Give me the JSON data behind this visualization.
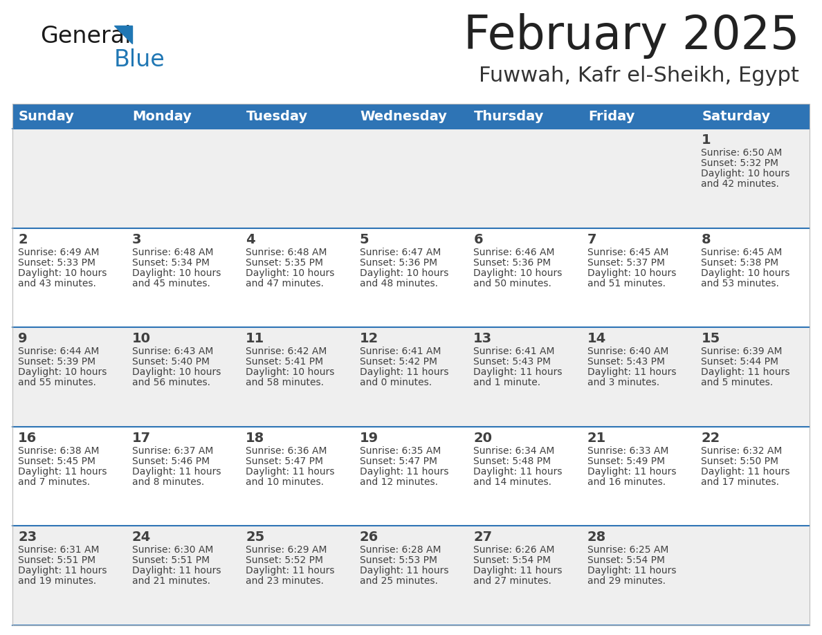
{
  "title": "February 2025",
  "subtitle": "Fuwwah, Kafr el-Sheikh, Egypt",
  "header_bg": "#2E74B5",
  "header_text": "#FFFFFF",
  "cell_bg_light": "#EFEFEF",
  "cell_bg_white": "#FFFFFF",
  "separator_color": "#2E74B5",
  "text_color": "#404040",
  "days_of_week": [
    "Sunday",
    "Monday",
    "Tuesday",
    "Wednesday",
    "Thursday",
    "Friday",
    "Saturday"
  ],
  "calendar_data": [
    [
      {
        "day": null,
        "sunrise": null,
        "sunset": null,
        "daylight": null
      },
      {
        "day": null,
        "sunrise": null,
        "sunset": null,
        "daylight": null
      },
      {
        "day": null,
        "sunrise": null,
        "sunset": null,
        "daylight": null
      },
      {
        "day": null,
        "sunrise": null,
        "sunset": null,
        "daylight": null
      },
      {
        "day": null,
        "sunrise": null,
        "sunset": null,
        "daylight": null
      },
      {
        "day": null,
        "sunrise": null,
        "sunset": null,
        "daylight": null
      },
      {
        "day": 1,
        "sunrise": "6:50 AM",
        "sunset": "5:32 PM",
        "daylight": "10 hours and 42 minutes."
      }
    ],
    [
      {
        "day": 2,
        "sunrise": "6:49 AM",
        "sunset": "5:33 PM",
        "daylight": "10 hours and 43 minutes."
      },
      {
        "day": 3,
        "sunrise": "6:48 AM",
        "sunset": "5:34 PM",
        "daylight": "10 hours and 45 minutes."
      },
      {
        "day": 4,
        "sunrise": "6:48 AM",
        "sunset": "5:35 PM",
        "daylight": "10 hours and 47 minutes."
      },
      {
        "day": 5,
        "sunrise": "6:47 AM",
        "sunset": "5:36 PM",
        "daylight": "10 hours and 48 minutes."
      },
      {
        "day": 6,
        "sunrise": "6:46 AM",
        "sunset": "5:36 PM",
        "daylight": "10 hours and 50 minutes."
      },
      {
        "day": 7,
        "sunrise": "6:45 AM",
        "sunset": "5:37 PM",
        "daylight": "10 hours and 51 minutes."
      },
      {
        "day": 8,
        "sunrise": "6:45 AM",
        "sunset": "5:38 PM",
        "daylight": "10 hours and 53 minutes."
      }
    ],
    [
      {
        "day": 9,
        "sunrise": "6:44 AM",
        "sunset": "5:39 PM",
        "daylight": "10 hours and 55 minutes."
      },
      {
        "day": 10,
        "sunrise": "6:43 AM",
        "sunset": "5:40 PM",
        "daylight": "10 hours and 56 minutes."
      },
      {
        "day": 11,
        "sunrise": "6:42 AM",
        "sunset": "5:41 PM",
        "daylight": "10 hours and 58 minutes."
      },
      {
        "day": 12,
        "sunrise": "6:41 AM",
        "sunset": "5:42 PM",
        "daylight": "11 hours and 0 minutes."
      },
      {
        "day": 13,
        "sunrise": "6:41 AM",
        "sunset": "5:43 PM",
        "daylight": "11 hours and 1 minute."
      },
      {
        "day": 14,
        "sunrise": "6:40 AM",
        "sunset": "5:43 PM",
        "daylight": "11 hours and 3 minutes."
      },
      {
        "day": 15,
        "sunrise": "6:39 AM",
        "sunset": "5:44 PM",
        "daylight": "11 hours and 5 minutes."
      }
    ],
    [
      {
        "day": 16,
        "sunrise": "6:38 AM",
        "sunset": "5:45 PM",
        "daylight": "11 hours and 7 minutes."
      },
      {
        "day": 17,
        "sunrise": "6:37 AM",
        "sunset": "5:46 PM",
        "daylight": "11 hours and 8 minutes."
      },
      {
        "day": 18,
        "sunrise": "6:36 AM",
        "sunset": "5:47 PM",
        "daylight": "11 hours and 10 minutes."
      },
      {
        "day": 19,
        "sunrise": "6:35 AM",
        "sunset": "5:47 PM",
        "daylight": "11 hours and 12 minutes."
      },
      {
        "day": 20,
        "sunrise": "6:34 AM",
        "sunset": "5:48 PM",
        "daylight": "11 hours and 14 minutes."
      },
      {
        "day": 21,
        "sunrise": "6:33 AM",
        "sunset": "5:49 PM",
        "daylight": "11 hours and 16 minutes."
      },
      {
        "day": 22,
        "sunrise": "6:32 AM",
        "sunset": "5:50 PM",
        "daylight": "11 hours and 17 minutes."
      }
    ],
    [
      {
        "day": 23,
        "sunrise": "6:31 AM",
        "sunset": "5:51 PM",
        "daylight": "11 hours and 19 minutes."
      },
      {
        "day": 24,
        "sunrise": "6:30 AM",
        "sunset": "5:51 PM",
        "daylight": "11 hours and 21 minutes."
      },
      {
        "day": 25,
        "sunrise": "6:29 AM",
        "sunset": "5:52 PM",
        "daylight": "11 hours and 23 minutes."
      },
      {
        "day": 26,
        "sunrise": "6:28 AM",
        "sunset": "5:53 PM",
        "daylight": "11 hours and 25 minutes."
      },
      {
        "day": 27,
        "sunrise": "6:26 AM",
        "sunset": "5:54 PM",
        "daylight": "11 hours and 27 minutes."
      },
      {
        "day": 28,
        "sunrise": "6:25 AM",
        "sunset": "5:54 PM",
        "daylight": "11 hours and 29 minutes."
      },
      {
        "day": null,
        "sunrise": null,
        "sunset": null,
        "daylight": null
      }
    ]
  ],
  "logo_color_general": "#1a1a1a",
  "logo_color_blue": "#2077B4",
  "logo_triangle_color": "#2077B4",
  "title_fontsize": 48,
  "subtitle_fontsize": 22,
  "header_fontsize": 14,
  "day_number_fontsize": 14,
  "cell_text_fontsize": 10
}
